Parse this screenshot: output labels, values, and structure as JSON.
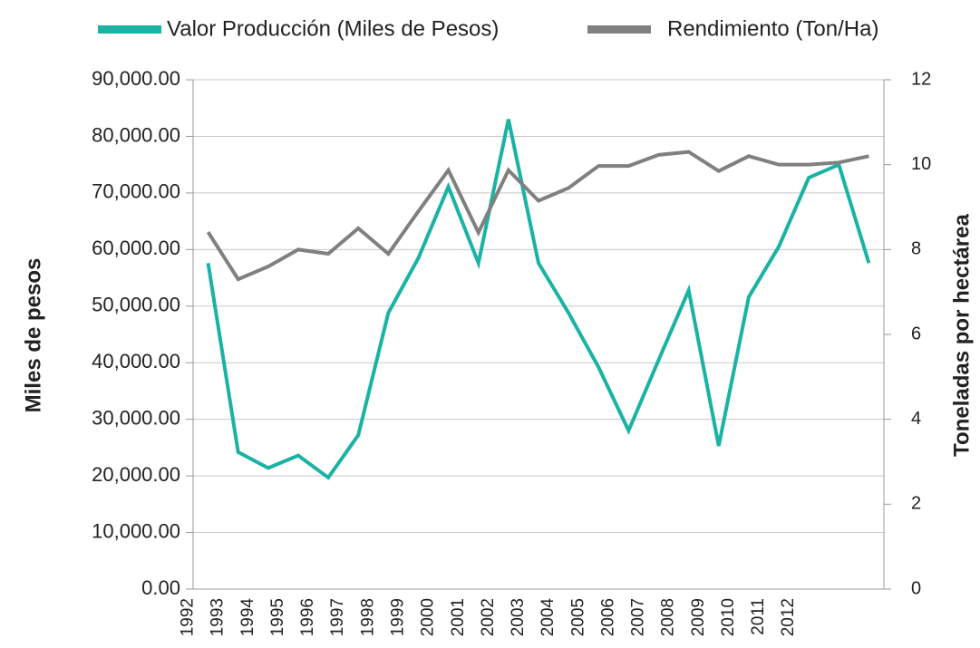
{
  "chart_data": {
    "type": "line",
    "categories": [
      "1992",
      "1993",
      "1994",
      "1995",
      "1996",
      "1997",
      "1998",
      "1999",
      "2000",
      "2001",
      "2002",
      "2003",
      "2004",
      "2005",
      "2006",
      "2007",
      "2008",
      "2009",
      "2010",
      "2011",
      "2012",
      null,
      null
    ],
    "series": [
      {
        "name": "Valor Producción (Miles de Pesos)",
        "color": "#1ab3a3",
        "axis": "y",
        "values": [
          57600,
          24200,
          21400,
          23600,
          19700,
          27200,
          48800,
          58500,
          71100,
          57600,
          83000,
          57600,
          48800,
          39200,
          28000,
          40500,
          52800,
          25300,
          51600,
          60500,
          72700,
          75000,
          57600
        ]
      },
      {
        "name": "Rendimiento (Ton/Ha)",
        "color": "#808080",
        "axis": "y2",
        "values": [
          8.41,
          7.3,
          7.6,
          8.0,
          7.9,
          8.5,
          7.9,
          8.9,
          9.87,
          8.4,
          9.87,
          9.15,
          9.45,
          9.97,
          9.97,
          10.23,
          10.3,
          9.85,
          10.2,
          10.0,
          10.0,
          10.05,
          10.2
        ]
      }
    ],
    "ylabel": "Miles de pesos",
    "y2label": "Toneladas por hectárea",
    "ylim": [
      0,
      90000
    ],
    "yticks": [
      {
        "value": 0,
        "label": "0.00"
      },
      {
        "value": 10000,
        "label": "10,000.00"
      },
      {
        "value": 20000,
        "label": "20,000.00"
      },
      {
        "value": 30000,
        "label": "30,000.00"
      },
      {
        "value": 40000,
        "label": "40,000.00"
      },
      {
        "value": 50000,
        "label": "50,000.00"
      },
      {
        "value": 60000,
        "label": "60,000.00"
      },
      {
        "value": 70000,
        "label": "70,000.00"
      },
      {
        "value": 80000,
        "label": "80,000.00"
      },
      {
        "value": 90000,
        "label": "90,000.00"
      }
    ],
    "y2lim": [
      0,
      12
    ],
    "y2ticks": [
      0,
      2,
      4,
      6,
      8,
      10,
      12
    ],
    "grid": true,
    "legend": "top"
  }
}
